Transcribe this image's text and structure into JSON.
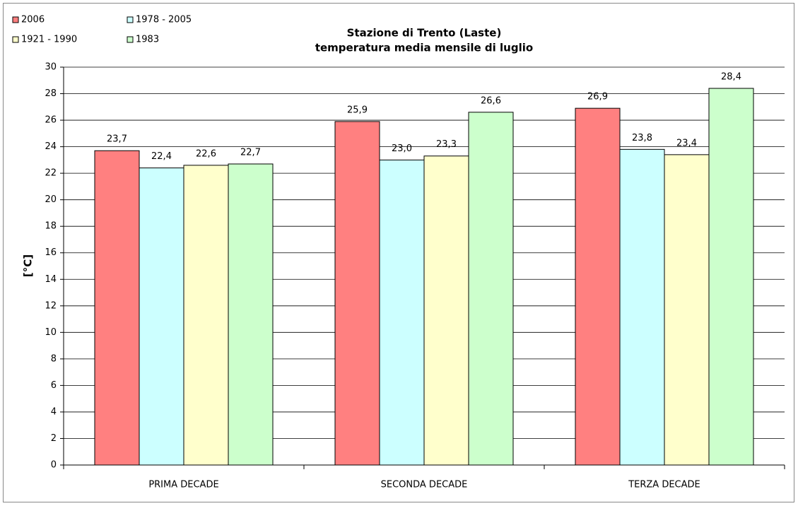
{
  "chart_data": {
    "type": "bar",
    "title": "Stazione di Trento (Laste)",
    "subtitle": "temperatura media mensile di luglio",
    "y_label": "[°C]",
    "categories": [
      "PRIMA DECADE",
      "SECONDA DECADE",
      "TERZA DECADE"
    ],
    "series": [
      {
        "name": "2006",
        "color": "#ff8080",
        "values": [
          23.7,
          25.9,
          26.9
        ],
        "value_labels": [
          "23,7",
          "25,9",
          "26,9"
        ]
      },
      {
        "name": "1978 - 2005",
        "color": "#ccffff",
        "values": [
          22.4,
          23.0,
          23.8
        ],
        "value_labels": [
          "22,4",
          "23,0",
          "23,8"
        ]
      },
      {
        "name": "1921 - 1990",
        "color": "#ffffcc",
        "values": [
          22.6,
          23.3,
          23.4
        ],
        "value_labels": [
          "22,6",
          "23,3",
          "23,4"
        ]
      },
      {
        "name": "1983",
        "color": "#ccffcc",
        "values": [
          22.7,
          26.6,
          28.4
        ],
        "value_labels": [
          "22,7",
          "26,6",
          "28,4"
        ]
      }
    ],
    "ylim": [
      0,
      30
    ],
    "yticks": [
      0,
      2,
      4,
      6,
      8,
      10,
      12,
      14,
      16,
      18,
      20,
      22,
      24,
      26,
      28,
      30
    ],
    "grid": true
  }
}
